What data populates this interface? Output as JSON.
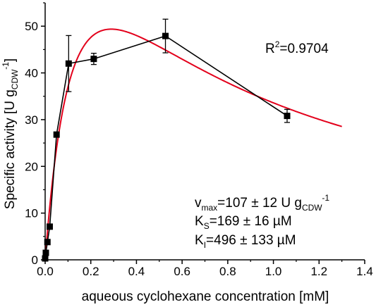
{
  "chart_data": {
    "type": "scatter",
    "xlabel": "aqueous cyclohexane concentration [mM]",
    "ylabel": {
      "main": "Specific activity [U g",
      "sub": "CDW",
      "sup": "-1",
      "close": "]"
    },
    "xlim": [
      0,
      1.4
    ],
    "ylim": [
      0,
      55
    ],
    "x_ticks": [
      "0.0",
      "0.2",
      "0.4",
      "0.6",
      "0.8",
      "1.0",
      "1.2",
      "1.4"
    ],
    "y_ticks": [
      "0",
      "10",
      "20",
      "30",
      "40",
      "50"
    ],
    "grid": false,
    "series": [
      {
        "kind": "measured",
        "marker": "square",
        "color": "#000000",
        "x": [
          0.0,
          0.003,
          0.01,
          0.02,
          0.05,
          0.103,
          0.213,
          0.527,
          1.06
        ],
        "y": [
          0.3,
          1.5,
          3.8,
          7.1,
          26.8,
          42.0,
          43.0,
          47.9,
          30.8
        ],
        "err": [
          0,
          0,
          0,
          0,
          0,
          6.0,
          1.2,
          3.6,
          1.4
        ]
      },
      {
        "kind": "fit",
        "color": "#e3001b",
        "model": "substrate-inhibition",
        "params": {
          "vmax": 107,
          "Ks": 0.169,
          "Ki": 0.496
        },
        "x_range": [
          0,
          1.3
        ]
      }
    ],
    "annotations": {
      "r2": {
        "base": "R",
        "sup": "2",
        "rest": "=0.9704"
      },
      "vmax": {
        "base": "v",
        "sub": "max",
        "mid": "=107 ± 12 U g",
        "sub2": "CDW",
        "sup": "-1"
      },
      "ks": {
        "base": "K",
        "sub": "S",
        "rest": "=169 ± 16 µM"
      },
      "ki": {
        "base": "K",
        "sub": "I",
        "rest": "=496 ± 133 µM"
      }
    }
  }
}
